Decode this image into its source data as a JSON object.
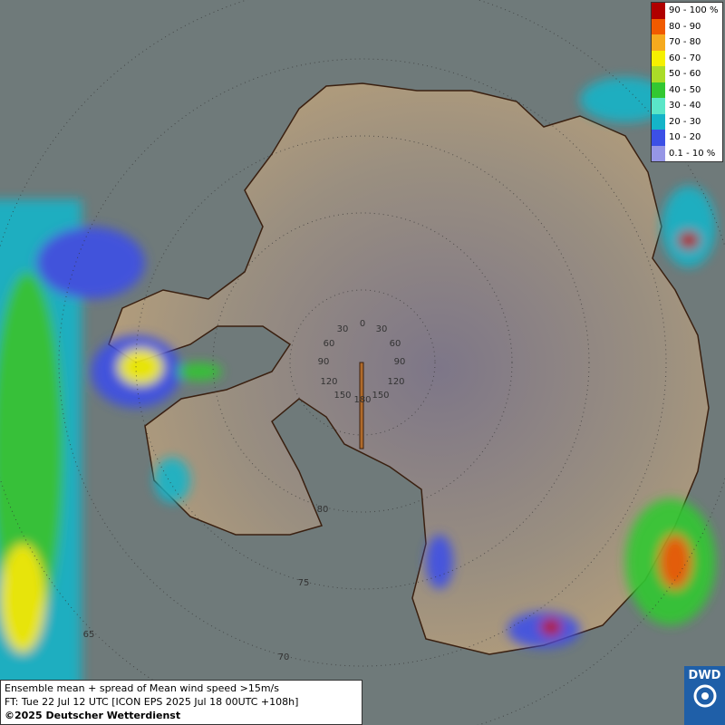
{
  "legend": {
    "items": [
      {
        "label": "90 - 100 %",
        "color": "#b00000"
      },
      {
        "label": "80 - 90",
        "color": "#f05a00"
      },
      {
        "label": "70 - 80",
        "color": "#f5aa1e"
      },
      {
        "label": "60 - 70",
        "color": "#f5f000"
      },
      {
        "label": "50 - 60",
        "color": "#aadc28"
      },
      {
        "label": "40 - 50",
        "color": "#32c832"
      },
      {
        "label": "30 - 40",
        "color": "#5ae6c8"
      },
      {
        "label": "20 - 30",
        "color": "#14b4c8"
      },
      {
        "label": "10 - 20",
        "color": "#3c50e6"
      },
      {
        "label": "0.1 - 10 %",
        "color": "#9696e6"
      }
    ]
  },
  "info": {
    "lines": [
      "Ensemble mean + spread of Mean wind speed >15m/s",
      "FT: Tue 22 Jul 12 UTC [ICON EPS 2025 Jul 18 00UTC +108h]",
      "©2025 Deutscher Wetterdienst"
    ]
  },
  "logo": {
    "text": "DWD"
  },
  "graticule": {
    "meridian_labels": [
      "0",
      "30",
      "30",
      "60",
      "60",
      "90",
      "90",
      "120",
      "120",
      "150",
      "150",
      "180"
    ],
    "parallel_labels": [
      "80",
      "75",
      "70",
      "65"
    ]
  }
}
